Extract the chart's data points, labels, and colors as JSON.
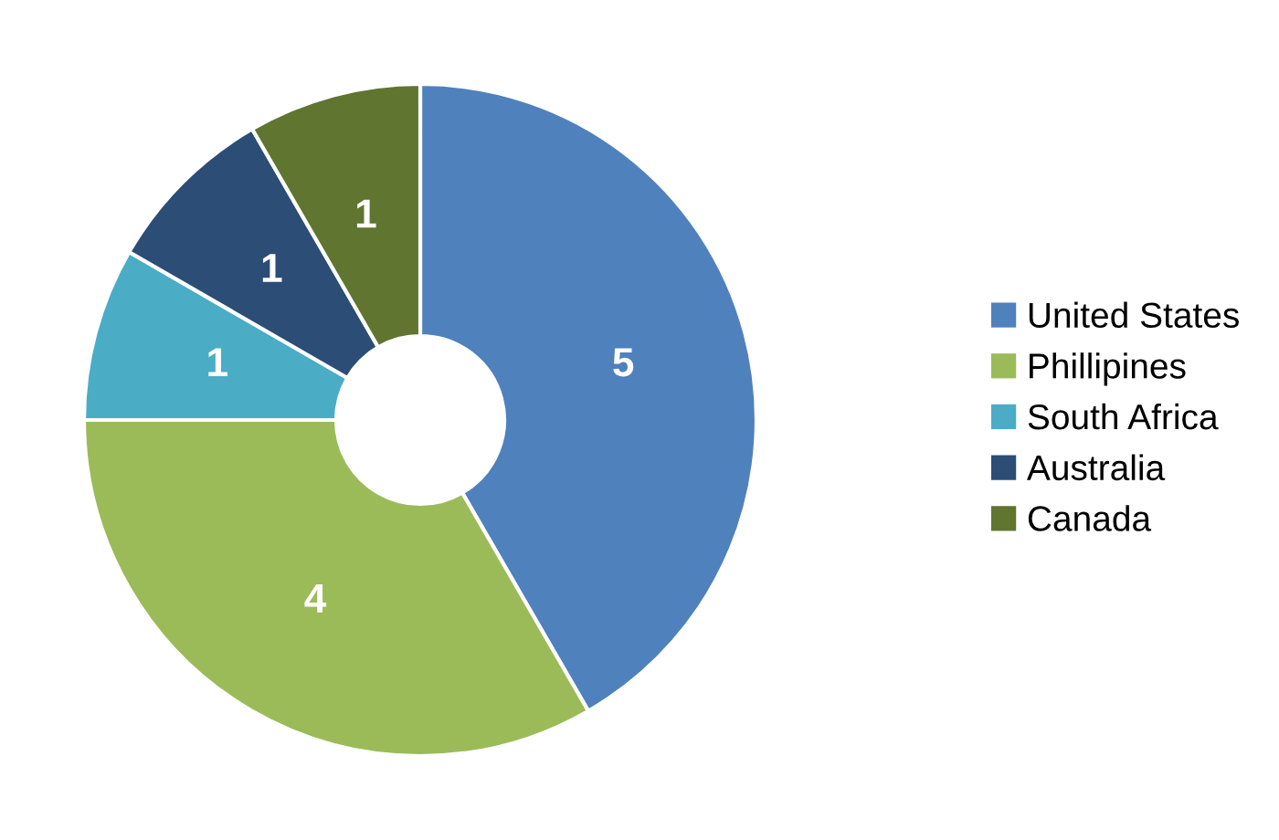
{
  "chart_data": {
    "type": "donut",
    "categories": [
      "United States",
      "Phillipines",
      "South Africa",
      "Australia",
      "Canada"
    ],
    "values": [
      5,
      4,
      1,
      1,
      1
    ],
    "colors": [
      "#4f81bd",
      "#9bbb59",
      "#4bacc6",
      "#2c4d75",
      "#5f7530"
    ],
    "data_labels": true,
    "legend": "right"
  }
}
